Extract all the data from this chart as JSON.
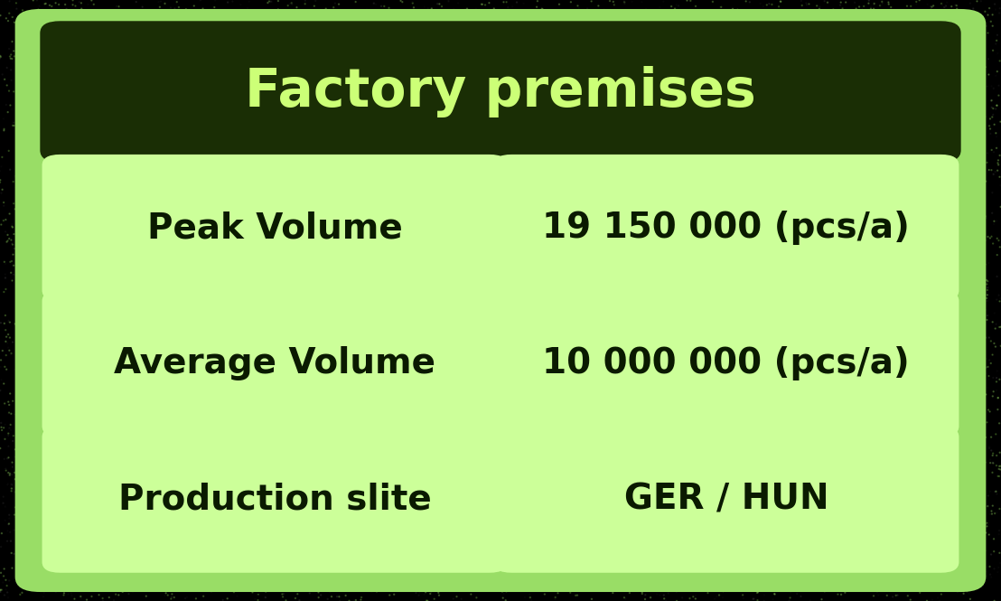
{
  "title": "Factory premises",
  "title_bg_color": "#1a2e05",
  "title_text_color": "#ccff77",
  "cell_bg_color": "#ccff99",
  "cell_text_color": "#0a1a00",
  "outer_bg_color": "#000000",
  "inner_bg_color": "#99dd66",
  "rows": [
    [
      "Peak Volume",
      "19 150 000 (pcs/a)"
    ],
    [
      "Average Volume",
      "10 000 000 (pcs/a)"
    ],
    [
      "Production slite",
      "GER / HUN"
    ]
  ],
  "title_fontsize": 42,
  "cell_fontsize": 28,
  "title_font_weight": "bold",
  "cell_font_weight": "bold",
  "fig_width": 11.08,
  "fig_height": 6.65,
  "dpi": 100
}
